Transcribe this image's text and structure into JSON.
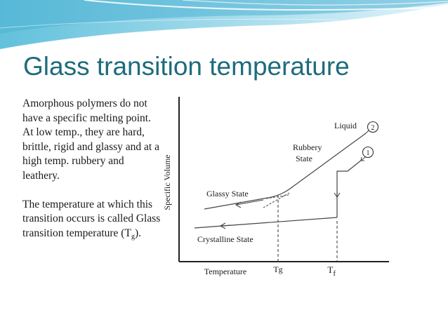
{
  "slide": {
    "title": "Glass transition temperature",
    "paragraph1": "Amorphous polymers do not have a specific melting point. At low temp., they are hard, brittle, rigid and glassy and at a high temp. rubbery and leathery.",
    "paragraph2_before": "The temperature at which this transition occurs is called Glass transition temperature (T",
    "paragraph2_sub": "g",
    "paragraph2_after": ")."
  },
  "diagram": {
    "y_axis_label": "Specific Volume",
    "x_axis_label": "Temperature",
    "tick_tg": "Tg",
    "tick_tf_main": "T",
    "tick_tf_sub": "f",
    "label_liquid": "Liquid",
    "label_rubbery_line1": "Rubbery",
    "label_rubbery_line2": "State",
    "label_glassy": "Glassy State",
    "label_crystalline": "Crystalline State",
    "marker_2": "2",
    "marker_1": "1"
  }
}
